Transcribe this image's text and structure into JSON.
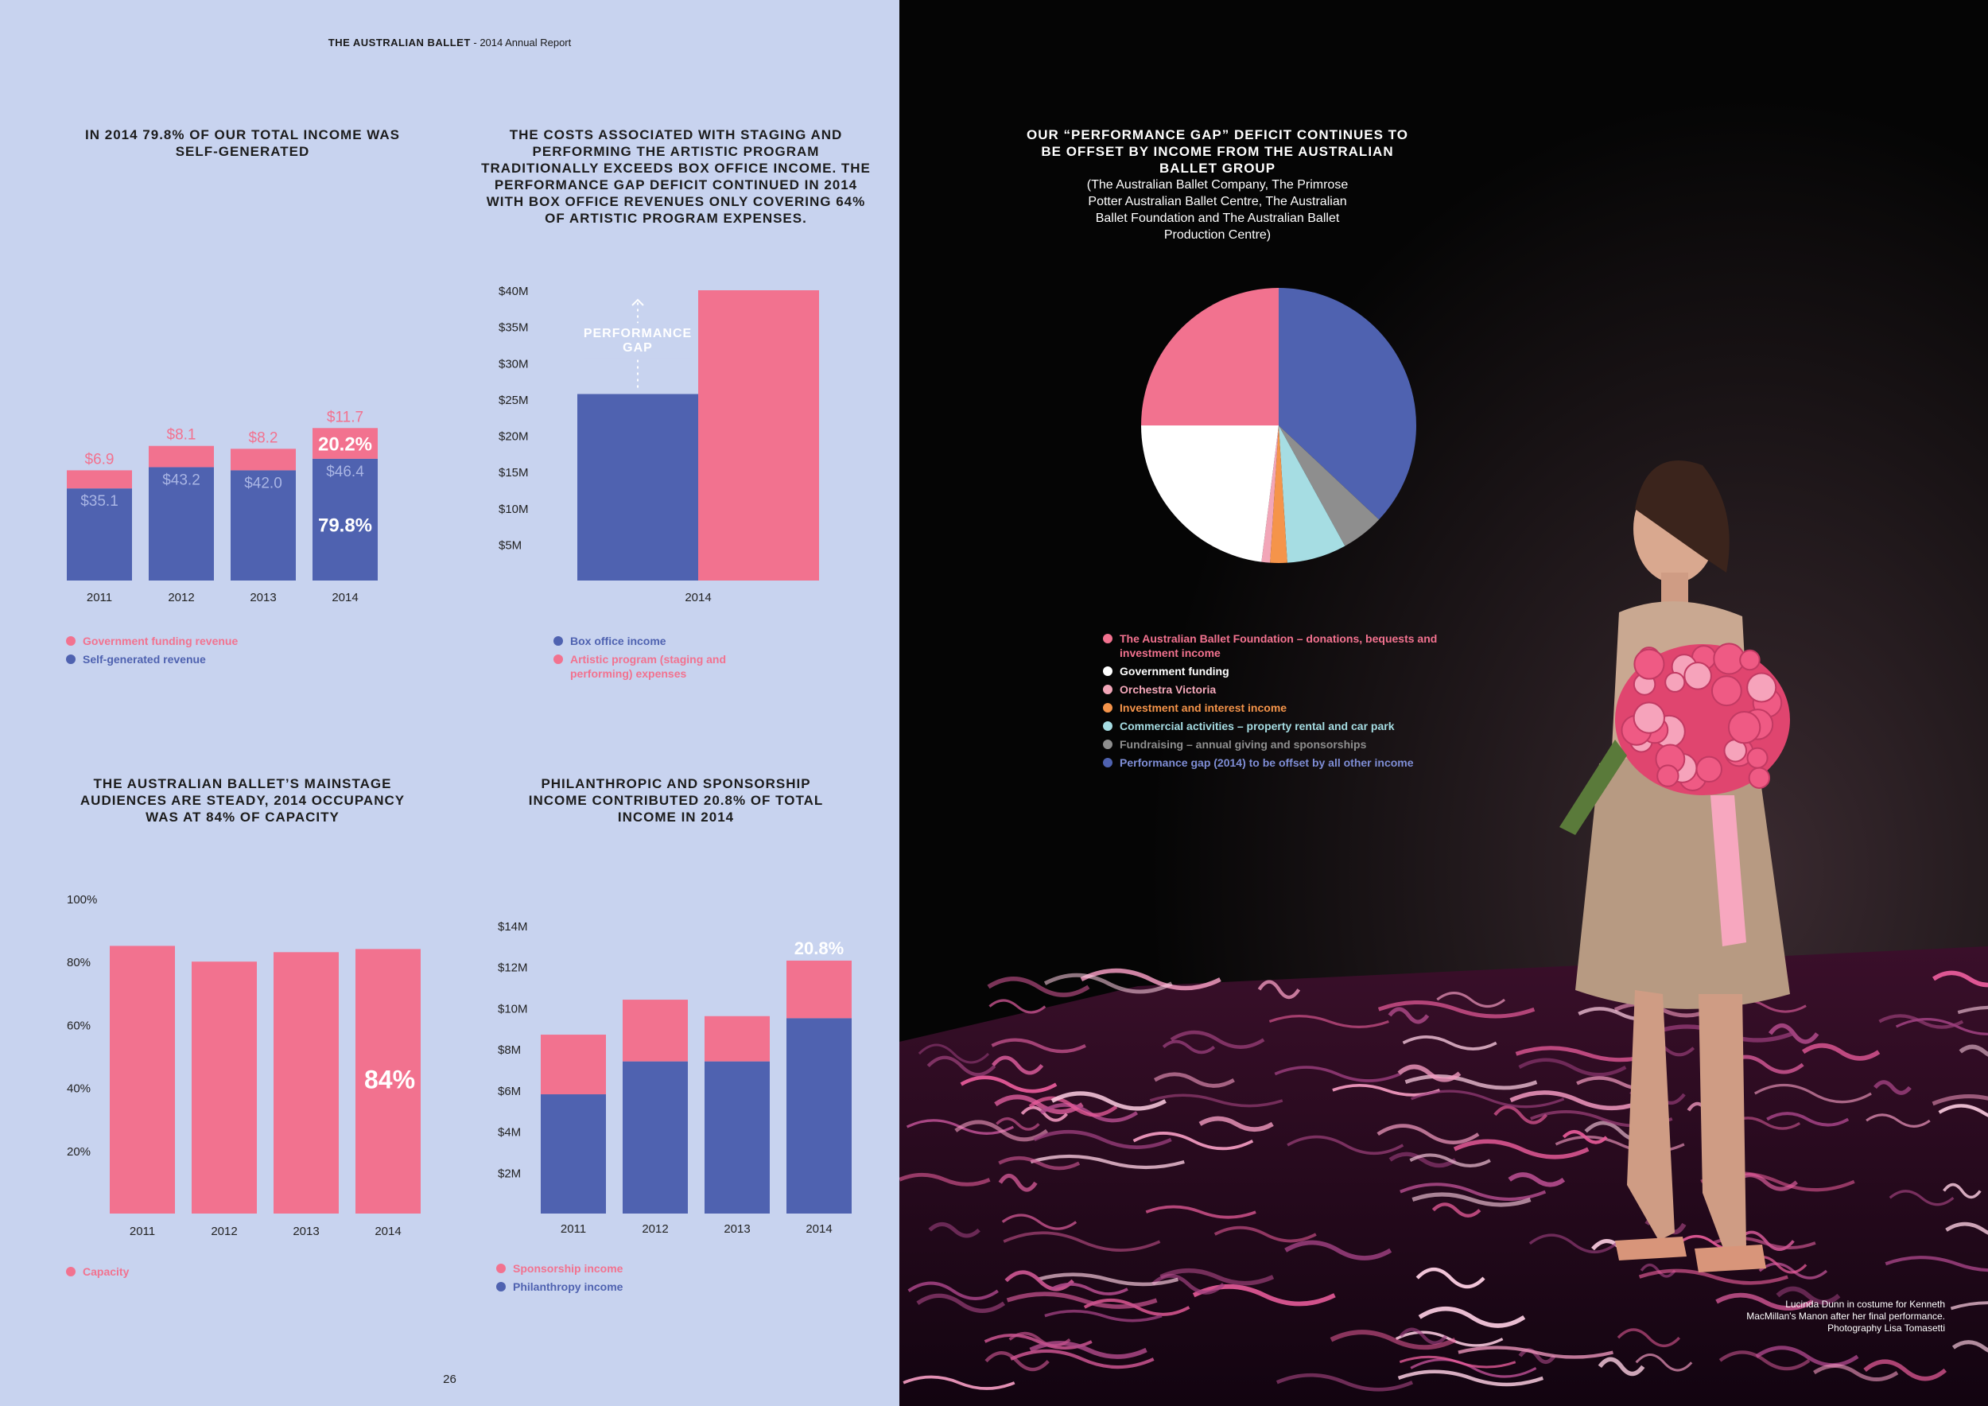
{
  "header": {
    "brand": "THE AUSTRALIAN BALLET",
    "rest": " - 2014 Annual Report"
  },
  "page_number": "26",
  "caption": "Lucinda Dunn in costume for Kenneth MacMillan's Manon after her final performance. Photography Lisa Tomasetti",
  "panels": {
    "income": {
      "title": "IN 2014 79.8% OF OUR TOTAL INCOME WAS SELF-GENERATED",
      "legend": [
        "Government funding revenue",
        "Self-generated revenue"
      ]
    },
    "gap": {
      "title": "THE COSTS ASSOCIATED WITH STAGING AND PERFORMING THE ARTISTIC PROGRAM TRADITIONALLY EXCEEDS BOX OFFICE INCOME. THE PERFORMANCE GAP DEFICIT CONTINUED IN 2014 WITH BOX OFFICE REVENUES ONLY COVERING 64% OF ARTISTIC PROGRAM EXPENSES.",
      "annotation": "PERFORMANCE GAP",
      "legend": [
        "Box office income",
        "Artistic program (staging and performing) expenses"
      ]
    },
    "pie": {
      "title": "OUR “PERFORMANCE GAP” DEFICIT CONTINUES TO BE OFFSET BY INCOME FROM THE AUSTRALIAN BALLET GROUP",
      "subtitle": "(The Australian Ballet Company, The Primrose Potter Australian Ballet Centre, The Australian Ballet Foundation and The Australian Ballet Production Centre)"
    },
    "occupancy": {
      "title": "THE AUSTRALIAN BALLET’S MAINSTAGE AUDIENCES ARE STEADY, 2014 OCCUPANCY WAS AT 84% OF CAPACITY",
      "legend": [
        "Capacity"
      ]
    },
    "philanthropy": {
      "title": "PHILANTHROPIC AND SPONSORSHIP INCOME CONTRIBUTED 20.8% OF TOTAL INCOME IN 2014",
      "legend": [
        "Sponsorship income",
        "Philanthropy income"
      ]
    }
  },
  "colors": {
    "pink": "#f2728f",
    "blue": "#4f62b0",
    "white": "#ffffff",
    "light_pink": "#f2a6b8",
    "orange": "#f5944a",
    "cyan": "#a6dde3",
    "gray": "#8e8e8e",
    "bg_left": "#c8d3ef",
    "pink_value_text": "#f2728f",
    "blue_value_text": "#a9b5e4"
  },
  "chart_data": [
    {
      "id": "income",
      "type": "bar",
      "stacked": true,
      "categories": [
        "2011",
        "2012",
        "2013",
        "2014"
      ],
      "series": [
        {
          "name": "Self-generated revenue",
          "values": [
            35.1,
            43.2,
            42.0,
            46.4
          ],
          "labels": [
            "$35.1",
            "$43.2",
            "$42.0",
            "$46.4"
          ]
        },
        {
          "name": "Government funding revenue",
          "values": [
            6.9,
            8.1,
            8.2,
            11.7
          ],
          "labels": [
            "$6.9",
            "$8.1",
            "$8.2",
            "$11.7"
          ]
        }
      ],
      "annotations": [
        "20.2%",
        "79.8%"
      ]
    },
    {
      "id": "gap",
      "type": "bar",
      "categories": [
        "2014"
      ],
      "series": [
        {
          "name": "Box office income",
          "values": [
            25.7
          ]
        },
        {
          "name": "Artistic program (staging and performing) expenses",
          "values": [
            40
          ]
        }
      ],
      "yticks": [
        "$5M",
        "$10M",
        "$15M",
        "$20M",
        "$25M",
        "$30M",
        "$35M",
        "$40M"
      ],
      "ylim": [
        0,
        40
      ]
    },
    {
      "id": "pie",
      "type": "pie",
      "slices": [
        {
          "name": "Performance gap (2014) to be offset by all other income",
          "value": 37
        },
        {
          "name": "Fundraising – annual giving and sponsorships",
          "value": 5
        },
        {
          "name": "Commercial activities – property rental and car park",
          "value": 7
        },
        {
          "name": "Investment and interest income",
          "value": 2
        },
        {
          "name": "Orchestra Victoria",
          "value": 1
        },
        {
          "name": "Government funding",
          "value": 23
        },
        {
          "name": "The Australian Ballet Foundation – donations, bequests and investment income",
          "value": 25
        }
      ],
      "legend_order": [
        "The Australian Ballet Foundation – donations, bequests and investment income",
        "Government funding",
        "Orchestra Victoria",
        "Investment and interest income",
        "Commercial activities – property rental and car park",
        "Fundraising – annual giving and sponsorships",
        "Performance gap (2014) to be offset by all other income"
      ]
    },
    {
      "id": "occupancy",
      "type": "bar",
      "categories": [
        "2011",
        "2012",
        "2013",
        "2014"
      ],
      "series": [
        {
          "name": "Capacity",
          "values": [
            85,
            80,
            83,
            84
          ]
        }
      ],
      "yticks": [
        "20%",
        "40%",
        "60%",
        "80%",
        "100%"
      ],
      "ylim": [
        0,
        100
      ],
      "annotations": [
        "84%"
      ]
    },
    {
      "id": "philanthropy",
      "type": "bar",
      "stacked": true,
      "categories": [
        "2011",
        "2012",
        "2013",
        "2014"
      ],
      "series": [
        {
          "name": "Philanthropy income",
          "values": [
            5.8,
            7.4,
            7.4,
            9.5
          ]
        },
        {
          "name": "Sponsorship income",
          "values": [
            2.9,
            3.0,
            2.2,
            2.8
          ]
        }
      ],
      "yticks": [
        "$2M",
        "$4M",
        "$6M",
        "$8M",
        "$10M",
        "$12M",
        "$14M"
      ],
      "ylim": [
        0,
        14
      ],
      "annotations": [
        "20.8%"
      ]
    }
  ]
}
